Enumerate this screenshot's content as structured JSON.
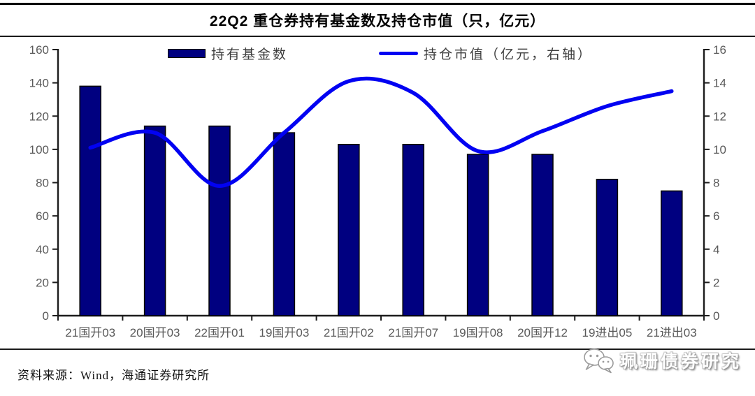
{
  "page": {
    "title": "22Q2 重仓券持有基金数及持仓市值（只，亿元）",
    "source_note": "资料来源：Wind，海通证券研究所",
    "watermark": "珮珊债券研究"
  },
  "chart_data": {
    "type": "combo_bar_line",
    "title": "22Q2 重仓券持有基金数及持仓市值（只，亿元）",
    "categories": [
      "21国开03",
      "20国开03",
      "22国开01",
      "19国开03",
      "21国开02",
      "21国开07",
      "19国开08",
      "20国开12",
      "19进出05",
      "21进出03"
    ],
    "series": [
      {
        "name": "持有基金数",
        "type": "bar",
        "axis": "left",
        "color": "#000080",
        "values": [
          138,
          114,
          114,
          110,
          103,
          103,
          97,
          97,
          82,
          75
        ]
      },
      {
        "name": "持仓市值（亿元，右轴）",
        "type": "line",
        "axis": "right",
        "color": "#0202f2",
        "values": [
          10.1,
          11.0,
          7.8,
          11.0,
          14.1,
          13.4,
          9.9,
          11.1,
          12.6,
          13.5
        ]
      }
    ],
    "left_axis": {
      "min": 0,
      "max": 160,
      "ticks": [
        0,
        20,
        40,
        60,
        80,
        100,
        120,
        140,
        160
      ]
    },
    "right_axis": {
      "min": 0,
      "max": 16,
      "ticks": [
        0,
        2,
        4,
        6,
        8,
        10,
        12,
        14,
        16
      ]
    },
    "legend_position": "top",
    "grid": false,
    "tick_label_color": "#5a5a5a",
    "axis_color": "#1c1c1c"
  }
}
